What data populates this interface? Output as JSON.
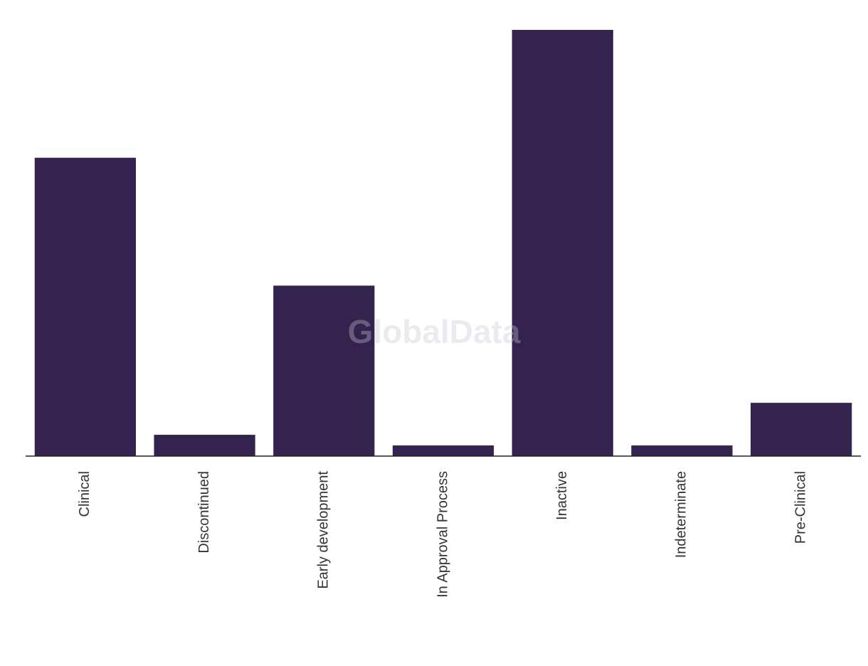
{
  "chart_data": {
    "type": "bar",
    "categories": [
      "Clinical",
      "Discontinued",
      "Early development",
      "In Approval Process",
      "Inactive",
      "Indeterminate",
      "Pre-Clinical"
    ],
    "values": [
      28,
      2,
      16,
      1,
      40,
      1,
      5
    ],
    "color": "#35234f",
    "ylim": [
      0,
      40
    ],
    "watermark": "GlobalData"
  }
}
